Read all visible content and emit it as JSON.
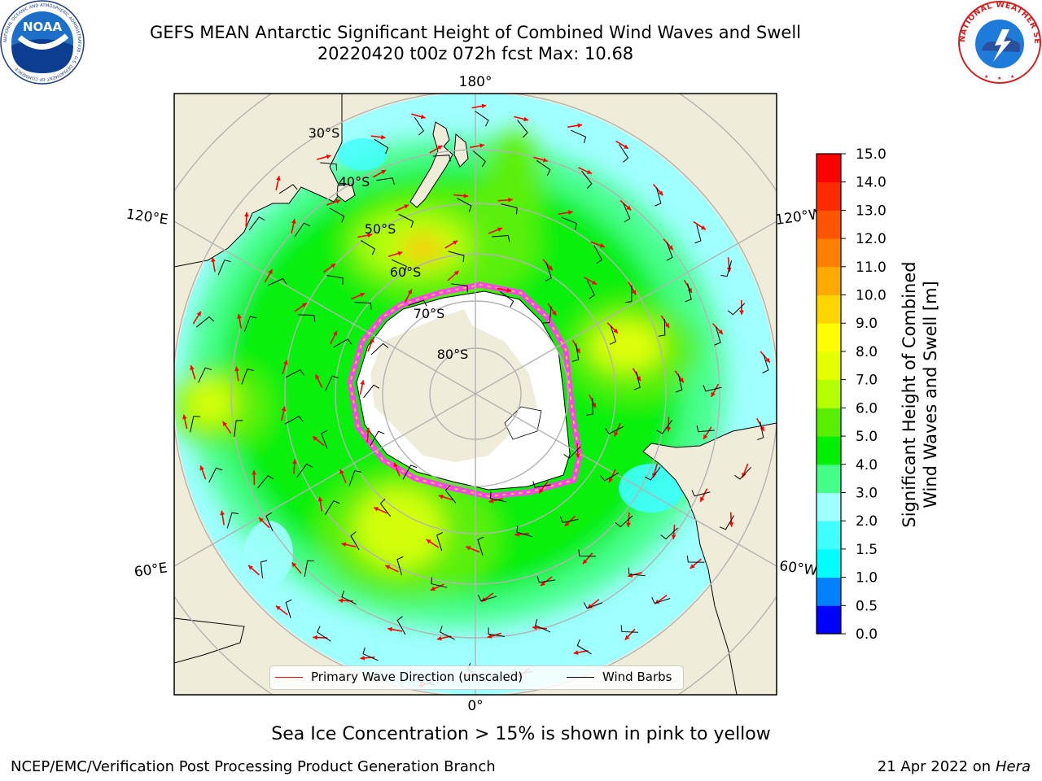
{
  "title": {
    "line1": "GEFS MEAN Antarctic Significant Height of Combined Wind Waves and Swell",
    "line2": "20220420 t00z 072h fcst   Max: 10.68"
  },
  "logos": {
    "left": "NOAA",
    "left_ring": "NATIONAL OCEANIC AND ATMOSPHERIC ADMINISTRATION · U.S. DEPARTMENT OF COMMERCE",
    "right_ring": "NATIONAL WEATHER SERVICE"
  },
  "map": {
    "longitude_labels": {
      "top": "180°",
      "bottom": "0°",
      "upper_left": "120°E",
      "upper_right": "120°W",
      "lower_left": "60°E",
      "lower_right": "60°W"
    },
    "latitude_labels": [
      "30°S",
      "40°S",
      "50°S",
      "60°S",
      "70°S",
      "80°S"
    ],
    "colors": {
      "land": "#efedd9",
      "ice_sheet": "#ffffff",
      "gridlines": "#b3b3b3",
      "wave_arrow": "#ff0000",
      "wind_barb": "#000000"
    }
  },
  "legend": {
    "wave_label": "Primary Wave Direction (unscaled)",
    "wind_label": "Wind Barbs"
  },
  "colorbar": {
    "label_line1": "Significant Height of Combined",
    "label_line2": "Wind Waves and Swell [m]",
    "ticks": [
      "0.0",
      "0.5",
      "1.0",
      "1.5",
      "2.0",
      "3.0",
      "4.0",
      "5.0",
      "6.0",
      "7.0",
      "8.0",
      "9.0",
      "10.0",
      "11.0",
      "12.0",
      "13.0",
      "14.0",
      "15.0"
    ],
    "colors": [
      "#0000ff",
      "#0080ff",
      "#00ffff",
      "#40ffff",
      "#a0ffff",
      "#44ff88",
      "#00f000",
      "#58f000",
      "#b4ff00",
      "#e4ff00",
      "#ffff00",
      "#ffd500",
      "#ffaa00",
      "#ff8000",
      "#ff5500",
      "#ff2b00",
      "#ff0000"
    ]
  },
  "subcaption": "Sea Ice Concentration > 15% is shown in pink to yellow",
  "footer": {
    "left": "NCEP/EMC/Verification Post Processing Product Generation Branch",
    "right_date": "21 Apr 2022 on",
    "right_host": "Hera"
  }
}
